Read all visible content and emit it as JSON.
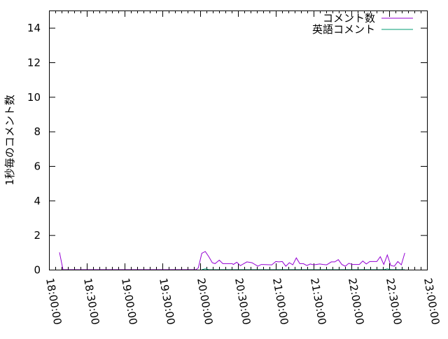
{
  "chart_data": {
    "type": "line",
    "title": "",
    "xlabel": "",
    "ylabel": "1秒毎のコメント数",
    "xlim": [
      "18:00:00",
      "23:00:00"
    ],
    "ylim": [
      0,
      15
    ],
    "x_ticks": [
      "18:00:00",
      "18:30:00",
      "19:00:00",
      "19:30:00",
      "20:00:00",
      "20:30:00",
      "21:00:00",
      "21:30:00",
      "22:00:00",
      "22:30:00",
      "23:00:00"
    ],
    "y_ticks": [
      0,
      2,
      4,
      6,
      8,
      10,
      12,
      14
    ],
    "grid": false,
    "legend_position": "top-right",
    "series": [
      {
        "name": "コメント数",
        "color": "#9400d3",
        "points": [
          [
            "18:08:20",
            1
          ],
          [
            "18:11:07",
            0
          ],
          [
            "19:56:40",
            0
          ],
          [
            "19:58:30",
            0.1
          ],
          [
            "20:01:17",
            0.95
          ],
          [
            "20:04:04",
            1.05
          ],
          [
            "20:06:50",
            0.75
          ],
          [
            "20:09:37",
            0.4
          ],
          [
            "20:11:50",
            0.35
          ],
          [
            "20:15:10",
            0.55
          ],
          [
            "20:17:57",
            0.35
          ],
          [
            "20:25:22",
            0.35
          ],
          [
            "20:26:17",
            0.3
          ],
          [
            "20:29:04",
            0.43
          ],
          [
            "20:31:50",
            0.23
          ],
          [
            "20:37:04",
            0.45
          ],
          [
            "20:41:07",
            0.4
          ],
          [
            "20:45:43",
            0.2
          ],
          [
            "20:48:30",
            0.3
          ],
          [
            "20:56:50",
            0.28
          ],
          [
            "21:00:00",
            0.47
          ],
          [
            "21:02:23",
            0.45
          ],
          [
            "21:05:10",
            0.47
          ],
          [
            "21:07:57",
            0.2
          ],
          [
            "21:10:43",
            0.4
          ],
          [
            "21:13:30",
            0.28
          ],
          [
            "21:16:17",
            0.68
          ],
          [
            "21:19:04",
            0.35
          ],
          [
            "21:21:50",
            0.35
          ],
          [
            "21:24:37",
            0.24
          ],
          [
            "21:27:23",
            0.33
          ],
          [
            "21:30:10",
            0.28
          ],
          [
            "21:34:50",
            0.33
          ],
          [
            "21:37:37",
            0.3
          ],
          [
            "21:40:23",
            0.28
          ],
          [
            "21:44:04",
            0.45
          ],
          [
            "21:46:50",
            0.45
          ],
          [
            "21:49:37",
            0.58
          ],
          [
            "21:52:23",
            0.3
          ],
          [
            "21:55:10",
            0.2
          ],
          [
            "21:57:57",
            0.37
          ],
          [
            "22:00:43",
            0.3
          ],
          [
            "22:06:17",
            0.3
          ],
          [
            "22:09:04",
            0.5
          ],
          [
            "22:11:50",
            0.33
          ],
          [
            "22:14:37",
            0.47
          ],
          [
            "22:20:10",
            0.47
          ],
          [
            "22:22:57",
            0.75
          ],
          [
            "22:25:43",
            0.3
          ],
          [
            "22:28:30",
            0.85
          ],
          [
            "22:31:17",
            0.24
          ],
          [
            "22:34:04",
            0.2
          ],
          [
            "22:36:50",
            0.47
          ],
          [
            "22:39:37",
            0.28
          ],
          [
            "22:42:23",
            0.97
          ]
        ]
      },
      {
        "name": "英語コメント",
        "color": "#009e73",
        "points": [
          [
            "20:01:17",
            0
          ],
          [
            "20:04:04",
            0.05
          ],
          [
            "20:06:50",
            0
          ],
          [
            "22:25:43",
            0
          ],
          [
            "22:28:30",
            0.05
          ],
          [
            "22:31:17",
            0
          ],
          [
            "22:42:23",
            0
          ]
        ]
      }
    ]
  }
}
